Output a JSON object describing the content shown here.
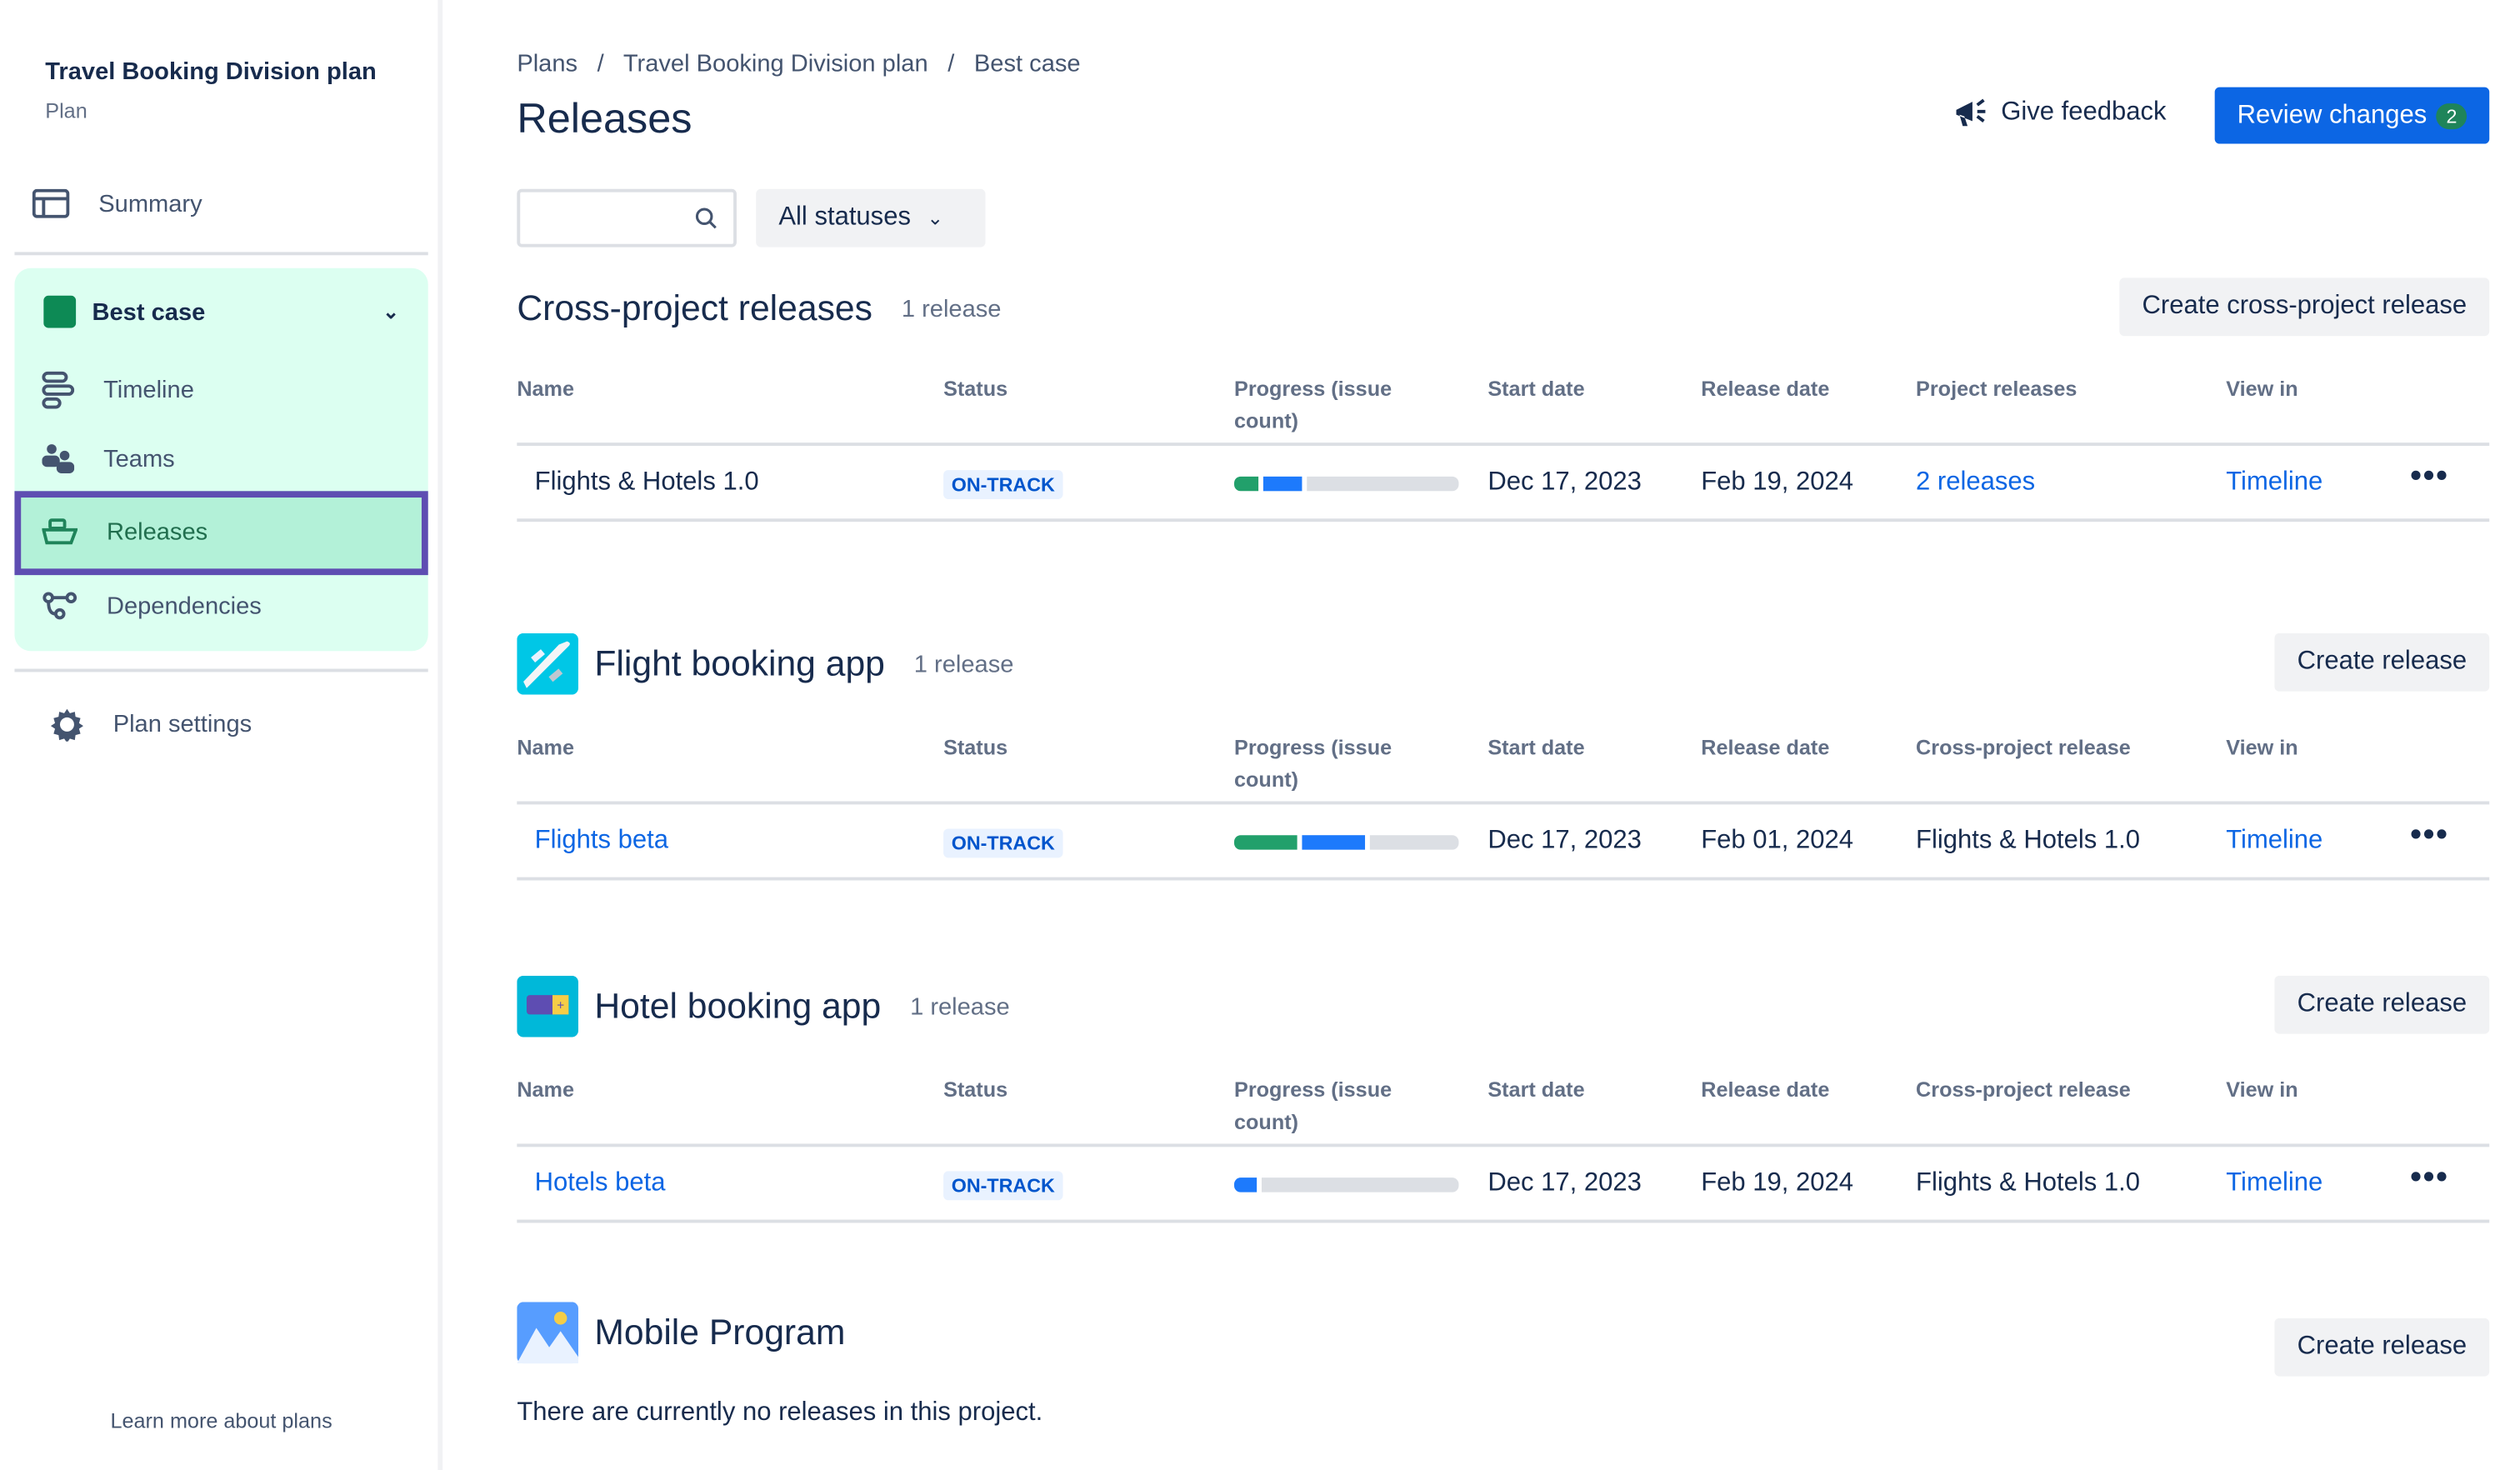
{
  "sidebar": {
    "plan_title": "Travel Booking Division plan",
    "plan_subtitle": "Plan",
    "summary": "Summary",
    "scenario": "Best case",
    "scenario_color": "#1f845a",
    "items": [
      {
        "label": "Timeline",
        "icon": "timeline-icon"
      },
      {
        "label": "Teams",
        "icon": "teams-icon"
      },
      {
        "label": "Releases",
        "icon": "ship-icon",
        "selected": true
      },
      {
        "label": "Dependencies",
        "icon": "dependencies-icon"
      }
    ],
    "settings": "Plan settings",
    "learn_more": "Learn more about plans"
  },
  "header": {
    "breadcrumb": [
      "Plans",
      "Travel Booking Division plan",
      "Best case"
    ],
    "separator": "/",
    "title": "Releases",
    "give_feedback": "Give feedback",
    "review_changes": "Review changes",
    "review_count": "2"
  },
  "filters": {
    "search_value": "",
    "status_filter": "All statuses"
  },
  "colors": {
    "accent": "#0c66e4",
    "done": "#22a06b",
    "in_progress": "#1d7afc",
    "todo": "#dcdfe4",
    "selection_outline": "#5e4db2"
  },
  "sections": [
    {
      "title": "Cross-project releases",
      "count": "1 release",
      "button": "Create cross-project release",
      "columns": [
        "Name",
        "Status",
        "Progress (issue count)",
        "Start date",
        "Release date",
        "Project releases",
        "View in"
      ],
      "rows": [
        {
          "name": "Flights & Hotels 1.0",
          "name_link": false,
          "status": "ON-TRACK",
          "progress_done_pct": 11,
          "progress_inprogress_pct": 17,
          "start": "Dec 17, 2023",
          "release": "Feb 19, 2024",
          "related": "2 releases",
          "related_link": true,
          "view_in": "Timeline"
        }
      ]
    },
    {
      "title": "Flight booking app",
      "icon": "airplane-project-icon",
      "count": "1 release",
      "button": "Create release",
      "columns": [
        "Name",
        "Status",
        "Progress (issue count)",
        "Start date",
        "Release date",
        "Cross-project release",
        "View in"
      ],
      "rows": [
        {
          "name": "Flights beta",
          "name_link": true,
          "status": "ON-TRACK",
          "progress_done_pct": 28,
          "progress_inprogress_pct": 28,
          "start": "Dec 17, 2023",
          "release": "Feb 01, 2024",
          "related": "Flights & Hotels 1.0",
          "related_link": false,
          "view_in": "Timeline"
        }
      ]
    },
    {
      "title": "Hotel booking app",
      "icon": "hotel-project-icon",
      "count": "1 release",
      "button": "Create release",
      "columns": [
        "Name",
        "Status",
        "Progress (issue count)",
        "Start date",
        "Release date",
        "Cross-project release",
        "View in"
      ],
      "rows": [
        {
          "name": "Hotels beta",
          "name_link": true,
          "status": "ON-TRACK",
          "progress_done_pct": 0,
          "progress_inprogress_pct": 10,
          "start": "Dec 17, 2023",
          "release": "Feb 19, 2024",
          "related": "Flights & Hotels 1.0",
          "related_link": false,
          "view_in": "Timeline"
        }
      ]
    },
    {
      "title": "Mobile Program",
      "icon": "mountain-project-icon",
      "button": "Create release",
      "empty": "There are currently no releases in this project."
    }
  ]
}
